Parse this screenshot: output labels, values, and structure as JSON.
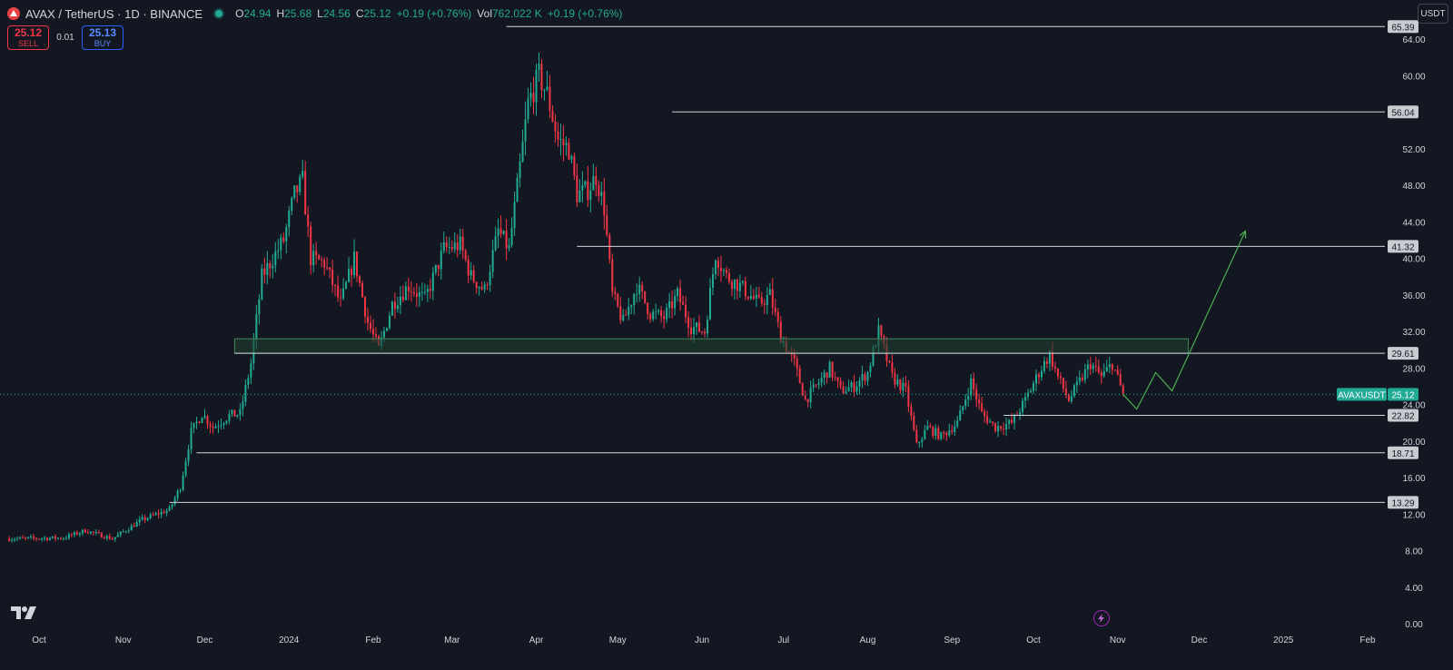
{
  "header": {
    "title": "AVAX / TetherUS · 1D · BINANCE",
    "ohlc": [
      {
        "key": "O",
        "value": "24.94"
      },
      {
        "key": "H",
        "value": "25.68"
      },
      {
        "key": "L",
        "value": "24.56"
      },
      {
        "key": "C",
        "value": "25.12"
      },
      {
        "key": "",
        "value": "+0.19 (+0.76%)"
      },
      {
        "key": "Vol",
        "value": "762.022 K"
      },
      {
        "key": "",
        "value": "+0.19 (+0.76%)"
      }
    ],
    "status_color": "#22ab94"
  },
  "trade": {
    "sell_price": "25.12",
    "sell_label": "SELL",
    "spread": "0.01",
    "buy_price": "25.13",
    "buy_label": "BUY"
  },
  "currency": "USDT",
  "colors": {
    "up": "#22ab94",
    "down": "#f23645",
    "bg": "#131722",
    "zone": "#1f4030",
    "zone_border": "#44855a",
    "projection": "#4caf50"
  },
  "chart_data": {
    "type": "candlestick",
    "symbol": "AVAXUSDT",
    "last_price": 25.12,
    "ylim": [
      0,
      68
    ],
    "y_ticks": [
      0,
      4,
      8,
      12,
      16,
      20,
      24,
      28,
      32,
      36,
      40,
      44,
      48,
      52,
      60,
      64
    ],
    "y_tick_labels": [
      "0.00",
      "4.00",
      "8.00",
      "12.00",
      "16.00",
      "20.00",
      "24.00",
      "28.00",
      "32.00",
      "36.00",
      "40.00",
      "44.00",
      "48.00",
      "52.00",
      "60.00",
      "64.00"
    ],
    "x_ticks": [
      {
        "date": "2023-10-01",
        "label": "Oct"
      },
      {
        "date": "2023-11-01",
        "label": "Nov"
      },
      {
        "date": "2023-12-01",
        "label": "Dec"
      },
      {
        "date": "2024-01-01",
        "label": "2024"
      },
      {
        "date": "2024-02-01",
        "label": "Feb"
      },
      {
        "date": "2024-03-01",
        "label": "Mar"
      },
      {
        "date": "2024-04-01",
        "label": "Apr"
      },
      {
        "date": "2024-05-01",
        "label": "May"
      },
      {
        "date": "2024-06-01",
        "label": "Jun"
      },
      {
        "date": "2024-07-01",
        "label": "Jul"
      },
      {
        "date": "2024-08-01",
        "label": "Aug"
      },
      {
        "date": "2024-09-01",
        "label": "Sep"
      },
      {
        "date": "2024-10-01",
        "label": "Oct"
      },
      {
        "date": "2024-11-01",
        "label": "Nov"
      },
      {
        "date": "2024-12-01",
        "label": "Dec"
      },
      {
        "date": "2025-01-01",
        "label": "2025"
      },
      {
        "date": "2025-02-01",
        "label": "Feb"
      }
    ],
    "price_path": [
      {
        "date": "2023-09-20",
        "close": 9.3
      },
      {
        "date": "2023-10-10",
        "close": 9.4
      },
      {
        "date": "2023-10-18",
        "close": 10.2
      },
      {
        "date": "2023-10-28",
        "close": 9.3
      },
      {
        "date": "2023-11-08",
        "close": 11.4
      },
      {
        "date": "2023-11-18",
        "close": 12.5
      },
      {
        "date": "2023-11-22",
        "close": 15.0
      },
      {
        "date": "2023-11-26",
        "close": 21.0
      },
      {
        "date": "2023-11-30",
        "close": 23.0
      },
      {
        "date": "2023-12-04",
        "close": 21.5
      },
      {
        "date": "2023-12-10",
        "close": 22.8
      },
      {
        "date": "2023-12-14",
        "close": 23.0
      },
      {
        "date": "2023-12-18",
        "close": 28.5
      },
      {
        "date": "2023-12-22",
        "close": 38.0
      },
      {
        "date": "2023-12-30",
        "close": 42.0
      },
      {
        "date": "2024-01-03",
        "close": 47.0
      },
      {
        "date": "2024-01-06",
        "close": 48.5
      },
      {
        "date": "2024-01-09",
        "close": 40.0
      },
      {
        "date": "2024-01-14",
        "close": 39.5
      },
      {
        "date": "2024-01-20",
        "close": 35.0
      },
      {
        "date": "2024-01-25",
        "close": 40.0
      },
      {
        "date": "2024-01-30",
        "close": 33.0
      },
      {
        "date": "2024-02-03",
        "close": 30.0
      },
      {
        "date": "2024-02-08",
        "close": 35.0
      },
      {
        "date": "2024-02-14",
        "close": 37.0
      },
      {
        "date": "2024-02-20",
        "close": 35.5
      },
      {
        "date": "2024-02-27",
        "close": 41.0
      },
      {
        "date": "2024-03-04",
        "close": 41.5
      },
      {
        "date": "2024-03-08",
        "close": 38.0
      },
      {
        "date": "2024-03-13",
        "close": 36.5
      },
      {
        "date": "2024-03-18",
        "close": 43.0
      },
      {
        "date": "2024-03-22",
        "close": 41.0
      },
      {
        "date": "2024-03-26",
        "close": 50.0
      },
      {
        "date": "2024-03-29",
        "close": 57.0
      },
      {
        "date": "2024-04-02",
        "close": 60.0
      },
      {
        "date": "2024-04-05",
        "close": 58.0
      },
      {
        "date": "2024-04-09",
        "close": 53.0
      },
      {
        "date": "2024-04-13",
        "close": 52.0
      },
      {
        "date": "2024-04-16",
        "close": 47.0
      },
      {
        "date": "2024-04-20",
        "close": 47.5
      },
      {
        "date": "2024-04-23",
        "close": 49.0
      },
      {
        "date": "2024-04-26",
        "close": 45.5
      },
      {
        "date": "2024-04-29",
        "close": 36.0
      },
      {
        "date": "2024-05-03",
        "close": 33.0
      },
      {
        "date": "2024-05-08",
        "close": 37.0
      },
      {
        "date": "2024-05-13",
        "close": 34.0
      },
      {
        "date": "2024-05-18",
        "close": 33.5
      },
      {
        "date": "2024-05-23",
        "close": 36.0
      },
      {
        "date": "2024-05-28",
        "close": 32.5
      },
      {
        "date": "2024-06-02",
        "close": 32.0
      },
      {
        "date": "2024-06-06",
        "close": 40.5
      },
      {
        "date": "2024-06-10",
        "close": 38.0
      },
      {
        "date": "2024-06-15",
        "close": 37.0
      },
      {
        "date": "2024-06-22",
        "close": 35.0
      },
      {
        "date": "2024-06-26",
        "close": 36.0
      },
      {
        "date": "2024-06-30",
        "close": 31.5
      },
      {
        "date": "2024-07-05",
        "close": 28.5
      },
      {
        "date": "2024-07-09",
        "close": 24.5
      },
      {
        "date": "2024-07-13",
        "close": 26.0
      },
      {
        "date": "2024-07-18",
        "close": 28.0
      },
      {
        "date": "2024-07-22",
        "close": 25.5
      },
      {
        "date": "2024-07-27",
        "close": 26.0
      },
      {
        "date": "2024-08-01",
        "close": 27.5
      },
      {
        "date": "2024-08-05",
        "close": 32.0
      },
      {
        "date": "2024-08-10",
        "close": 27.0
      },
      {
        "date": "2024-08-15",
        "close": 25.5
      },
      {
        "date": "2024-08-19",
        "close": 19.5
      },
      {
        "date": "2024-08-23",
        "close": 21.5
      },
      {
        "date": "2024-08-28",
        "close": 20.5
      },
      {
        "date": "2024-09-03",
        "close": 22.0
      },
      {
        "date": "2024-09-08",
        "close": 26.5
      },
      {
        "date": "2024-09-12",
        "close": 23.0
      },
      {
        "date": "2024-09-17",
        "close": 21.5
      },
      {
        "date": "2024-09-23",
        "close": 22.0
      },
      {
        "date": "2024-09-28",
        "close": 24.5
      },
      {
        "date": "2024-10-03",
        "close": 27.5
      },
      {
        "date": "2024-10-07",
        "close": 29.5
      },
      {
        "date": "2024-10-10",
        "close": 27.0
      },
      {
        "date": "2024-10-14",
        "close": 24.5
      },
      {
        "date": "2024-10-18",
        "close": 26.5
      },
      {
        "date": "2024-10-22",
        "close": 28.5
      },
      {
        "date": "2024-10-26",
        "close": 27.0
      },
      {
        "date": "2024-10-30",
        "close": 28.5
      },
      {
        "date": "2024-11-03",
        "close": 25.12
      }
    ],
    "levels": [
      {
        "price": 65.39,
        "label": "65.39",
        "start": "2024-03-21"
      },
      {
        "price": 56.04,
        "label": "56.04",
        "start": "2024-05-21"
      },
      {
        "price": 41.32,
        "label": "41.32",
        "start": "2024-04-16"
      },
      {
        "price": 29.61,
        "label": "29.61",
        "start": "2023-12-12"
      },
      {
        "price": 22.82,
        "label": "22.82",
        "start": "2024-09-20"
      },
      {
        "price": 18.71,
        "label": "18.71",
        "start": "2023-11-28"
      },
      {
        "price": 13.29,
        "label": "13.29",
        "start": "2023-11-18"
      }
    ],
    "zone": {
      "from": "2023-12-12",
      "to": "2024-11-27",
      "low": 29.61,
      "high": 31.2
    },
    "projection": [
      {
        "date": "2024-11-03",
        "price": 25.12
      },
      {
        "date": "2024-11-08",
        "price": 23.5
      },
      {
        "date": "2024-11-15",
        "price": 27.5
      },
      {
        "date": "2024-11-21",
        "price": 25.5
      },
      {
        "date": "2024-12-18",
        "price": 43.0
      }
    ]
  }
}
